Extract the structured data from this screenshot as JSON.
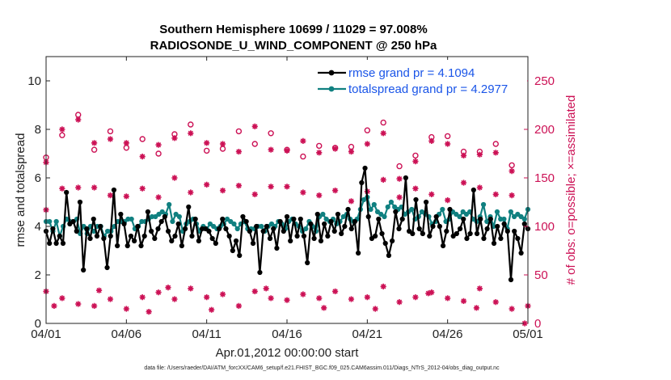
{
  "chart_data": {
    "type": "line",
    "title": "Southern Hemisphere 10699 / 11029 = 97.008%",
    "subtitle": "RADIOSONDE_U_WIND_COMPONENT @ 250 hPa",
    "xlabel": "Apr.01,2012 00:00:00 start",
    "ylabel": "rmse and totalspread",
    "ylabel_right": "# of obs: o=possible; ×=assimilated",
    "ylim": [
      0,
      11
    ],
    "ylim_right": [
      0,
      275
    ],
    "xlim": [
      0,
      30
    ],
    "x_ticks": [
      0,
      5,
      10,
      15,
      20,
      25,
      30
    ],
    "x_tick_labels": [
      "04/01",
      "04/06",
      "04/11",
      "04/16",
      "04/21",
      "04/26",
      "05/01"
    ],
    "y_ticks": [
      0,
      2,
      4,
      6,
      8,
      10
    ],
    "y_tick_labels": [
      "0",
      "2",
      "4",
      "6",
      "8",
      "10"
    ],
    "y_ticks_right": [
      0,
      50,
      100,
      150,
      200,
      250
    ],
    "y_tick_labels_right": [
      "0",
      "50",
      "100",
      "150",
      "200",
      "250"
    ],
    "footnote": "data file: /Users/raeder/DAI/ATM_forcXX/CAM6_setup/f.e21.FHIST_BGC.f09_025.CAM6assim.011/Diags_NTrS_2012-04/obs_diag_output.nc",
    "legend_position": "top-right",
    "colors": {
      "rmse": "#000000",
      "spread": "#108080",
      "obs": "#cc1155",
      "legend_text": "#1a55e8"
    },
    "series": [
      {
        "name": "rmse grand pr = 4.1094",
        "color": "#000000",
        "marker": "circle",
        "values": [
          3.8,
          3.3,
          3.9,
          3.3,
          3.6,
          3.3,
          5.4,
          4.1,
          4.2,
          3.8,
          5.0,
          2.2,
          3.9,
          3.5,
          4.3,
          3.6,
          4.0,
          3.5,
          2.3,
          3.6,
          5.5,
          3.2,
          4.5,
          4.1,
          3.2,
          3.6,
          3.4,
          4.0,
          3.2,
          3.6,
          4.6,
          3.8,
          3.5,
          3.9,
          4.2,
          4.4,
          3.8,
          3.4,
          3.6,
          4.1,
          3.2,
          3.9,
          4.8,
          3.6,
          4.3,
          3.4,
          3.9,
          3.9,
          3.8,
          3.5,
          3.3,
          3.9,
          4.3,
          3.9,
          3.6,
          3.0,
          3.4,
          2.8,
          4.4,
          4.2,
          3.8,
          3.3,
          4.0,
          2.1,
          3.8,
          4.0,
          3.5,
          3.9,
          3.1,
          4.2,
          3.8,
          4.4,
          3.4,
          4.3,
          3.6,
          4.3,
          3.6,
          2.5,
          4.1,
          3.5,
          4.5,
          3.4,
          4.1,
          3.6,
          4.2,
          3.8,
          4.5,
          3.7,
          4.0,
          4.7,
          3.9,
          4.2,
          2.9,
          5.8,
          6.4,
          4.4,
          3.5,
          3.6,
          4.3,
          3.7,
          3.3,
          2.8,
          3.4,
          4.6,
          3.9,
          4.3,
          6.0,
          3.8,
          3.7,
          5.1,
          3.9,
          3.7,
          5.0,
          3.6,
          4.0,
          4.4,
          4.0,
          3.2,
          3.8,
          4.7,
          3.6,
          3.7,
          3.9,
          4.3,
          3.5,
          3.7,
          5.5,
          3.7,
          4.3,
          3.5,
          3.9,
          4.3,
          3.3,
          4.0,
          3.5,
          4.1,
          3.8,
          1.8,
          3.8,
          3.5,
          2.9,
          4.1,
          3.9
        ]
      },
      {
        "name": "totalspread grand pr = 4.2977",
        "color": "#108080",
        "marker": "circle",
        "values": [
          4.2,
          4.2,
          3.8,
          4.2,
          3.6,
          4.0,
          4.3,
          4.2,
          4.2,
          4.3,
          3.7,
          4.0,
          3.7,
          4.0,
          3.8,
          4.0,
          4.0,
          3.6,
          3.8,
          3.8,
          4.0,
          4.2,
          4.2,
          4.2,
          4.3,
          4.3,
          3.9,
          4.0,
          4.2,
          4.2,
          4.3,
          4.4,
          4.4,
          4.5,
          4.6,
          4.5,
          4.9,
          4.2,
          4.5,
          4.4,
          3.8,
          4.1,
          4.2,
          4.3,
          4.1,
          3.8,
          4.0,
          3.9,
          4.1,
          4.0,
          3.9,
          4.0,
          4.1,
          4.3,
          4.2,
          4.1,
          3.9,
          4.1,
          4.2,
          3.9,
          3.9,
          3.9,
          4.0,
          4.0,
          3.8,
          4.0,
          4.1,
          4.0,
          4.2,
          4.1,
          3.9,
          4.2,
          4.3,
          4.1,
          4.0,
          3.8,
          3.9,
          4.2,
          4.0,
          3.8,
          4.4,
          4.5,
          4.3,
          4.2,
          4.3,
          4.1,
          4.2,
          4.4,
          4.5,
          4.3,
          4.2,
          4.3,
          4.7,
          5.1,
          5.2,
          4.7,
          4.9,
          4.6,
          4.5,
          4.4,
          4.8,
          5.0,
          4.8,
          4.7,
          4.8,
          4.5,
          4.6,
          4.7,
          4.3,
          4.4,
          4.6,
          4.5,
          4.4,
          4.1,
          4.2,
          4.5,
          4.7,
          4.2,
          4.3,
          4.6,
          4.5,
          4.4,
          4.6,
          4.5,
          4.6,
          4.3,
          4.2,
          4.4,
          4.9,
          4.2,
          4.4,
          4.0,
          4.6,
          4.3,
          4.3,
          3.9,
          4.6,
          4.4,
          4.5,
          4.4,
          4.3,
          4.7
        ]
      }
    ],
    "obs_possible_high": [
      [
        0,
        171
      ],
      [
        1,
        194
      ],
      [
        2,
        215
      ],
      [
        3,
        179
      ],
      [
        4,
        198
      ],
      [
        5,
        181
      ],
      [
        6,
        190
      ],
      [
        7,
        175
      ],
      [
        8,
        195
      ],
      [
        9,
        205
      ],
      [
        10,
        178
      ],
      [
        11,
        180
      ],
      [
        12,
        198
      ],
      [
        13,
        185
      ],
      [
        14,
        196
      ],
      [
        15,
        179
      ],
      [
        16,
        172
      ],
      [
        17,
        183
      ],
      [
        18,
        181
      ],
      [
        19,
        182
      ],
      [
        20,
        199
      ],
      [
        21,
        207
      ],
      [
        22,
        162
      ],
      [
        23,
        173
      ],
      [
        24,
        192
      ],
      [
        25,
        193
      ],
      [
        26,
        177
      ],
      [
        27,
        177
      ],
      [
        28,
        185
      ],
      [
        29,
        163
      ]
    ],
    "obs_assim_high": [
      [
        0,
        166
      ],
      [
        1,
        200
      ],
      [
        2,
        210
      ],
      [
        3,
        186
      ],
      [
        4,
        190
      ],
      [
        5,
        186
      ],
      [
        6,
        172
      ],
      [
        7,
        184
      ],
      [
        8,
        191
      ],
      [
        9,
        196
      ],
      [
        10,
        186
      ],
      [
        11,
        185
      ],
      [
        12,
        177
      ],
      [
        13,
        203
      ],
      [
        14,
        179
      ],
      [
        15,
        178
      ],
      [
        16,
        188
      ],
      [
        17,
        176
      ],
      [
        18,
        180
      ],
      [
        19,
        177
      ],
      [
        20,
        185
      ],
      [
        21,
        196
      ],
      [
        22,
        149
      ],
      [
        23,
        167
      ],
      [
        24,
        188
      ],
      [
        25,
        185
      ],
      [
        26,
        173
      ],
      [
        27,
        174
      ],
      [
        28,
        176
      ],
      [
        29,
        157
      ]
    ],
    "obs_mid": [
      [
        0,
        117
      ],
      [
        1,
        139
      ],
      [
        2,
        140
      ],
      [
        3,
        140
      ],
      [
        4,
        132
      ],
      [
        5,
        131
      ],
      [
        6,
        139
      ],
      [
        7,
        130
      ],
      [
        8,
        150
      ],
      [
        9,
        135
      ],
      [
        10,
        143
      ],
      [
        11,
        137
      ],
      [
        12,
        142
      ],
      [
        13,
        133
      ],
      [
        14,
        141
      ],
      [
        15,
        141
      ],
      [
        16,
        135
      ],
      [
        17,
        132
      ],
      [
        18,
        137
      ],
      [
        19,
        126
      ],
      [
        20,
        136
      ],
      [
        21,
        148
      ],
      [
        22,
        130
      ],
      [
        23,
        139
      ],
      [
        24,
        133
      ],
      [
        25,
        127
      ],
      [
        26,
        145
      ],
      [
        27,
        140
      ],
      [
        28,
        133
      ],
      [
        29,
        132
      ]
    ],
    "obs_low": [
      [
        0,
        33
      ],
      [
        1,
        26
      ],
      [
        2,
        20
      ],
      [
        3,
        18
      ],
      [
        4,
        25
      ],
      [
        5,
        15
      ],
      [
        6,
        27
      ],
      [
        7,
        32
      ],
      [
        8,
        25
      ],
      [
        9,
        36
      ],
      [
        10,
        27
      ],
      [
        11,
        30
      ],
      [
        12,
        18
      ],
      [
        13,
        33
      ],
      [
        14,
        26
      ],
      [
        15,
        24
      ],
      [
        16,
        30
      ],
      [
        17,
        26
      ],
      [
        18,
        33
      ],
      [
        19,
        25
      ],
      [
        20,
        27
      ],
      [
        21,
        38
      ],
      [
        22,
        22
      ],
      [
        23,
        27
      ],
      [
        24,
        32
      ],
      [
        25,
        26
      ],
      [
        26,
        23
      ],
      [
        27,
        36
      ],
      [
        28,
        22
      ],
      [
        29,
        15
      ],
      [
        30,
        18
      ]
    ],
    "obs_low_extra": [
      [
        0.5,
        18
      ],
      [
        3.3,
        34
      ],
      [
        6.4,
        12
      ],
      [
        7.6,
        37
      ],
      [
        10.3,
        14
      ],
      [
        13.7,
        36
      ],
      [
        17.3,
        16
      ],
      [
        20.5,
        15
      ],
      [
        23.8,
        31
      ],
      [
        26.8,
        16
      ],
      [
        29.8,
        0
      ]
    ]
  }
}
